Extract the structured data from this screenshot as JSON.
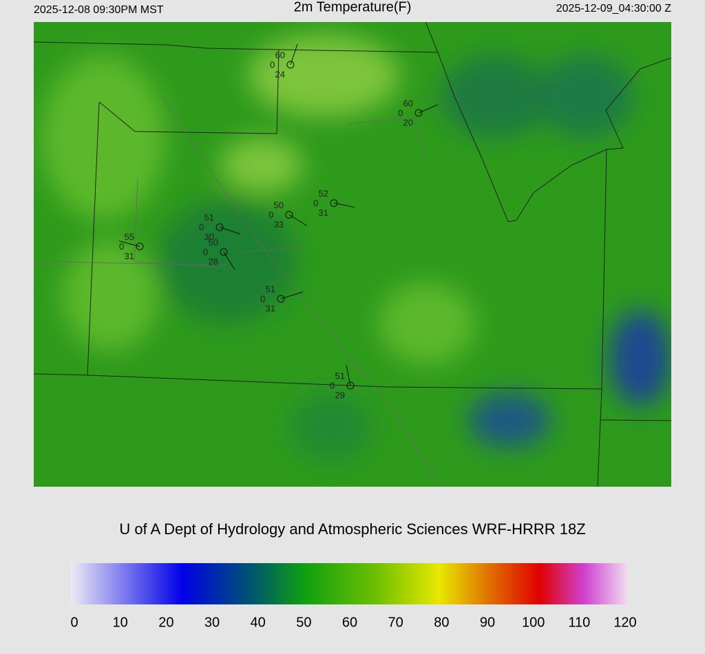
{
  "header": {
    "left": "2025-12-08 09:30PM MST",
    "title": "2m Temperature(F)",
    "right": "2025-12-09_04:30:00 Z"
  },
  "stations": [
    {
      "temp": "60",
      "code": "0",
      "dew": "24"
    },
    {
      "temp": "60",
      "code": "0",
      "dew": "20"
    },
    {
      "temp": "52",
      "code": "0",
      "dew": "31"
    },
    {
      "temp": "50",
      "code": "0",
      "dew": "33"
    },
    {
      "temp": "51",
      "code": "0",
      "dew": "30"
    },
    {
      "temp": "50",
      "code": "0",
      "dew": "28"
    },
    {
      "temp": "55",
      "code": "0",
      "dew": "31"
    },
    {
      "temp": "51",
      "code": "0",
      "dew": "31"
    },
    {
      "temp": "51",
      "code": "0",
      "dew": "29"
    }
  ],
  "credit": "U of A Dept of Hydrology and Atmospheric Sciences WRF-HRRR 18Z",
  "colorbar": {
    "ticks": [
      0,
      10,
      20,
      30,
      40,
      50,
      60,
      70,
      80,
      90,
      100,
      110,
      120
    ]
  }
}
